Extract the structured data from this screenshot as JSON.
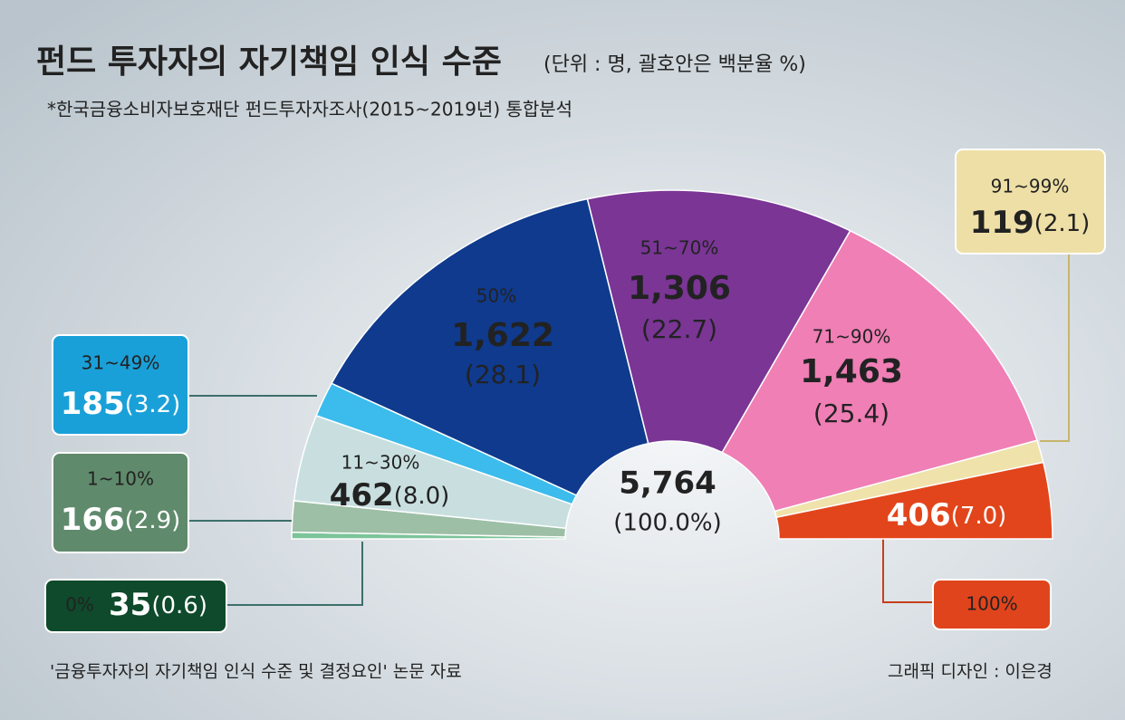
{
  "title": "펀드 투자자의 자기책임 인식 수준",
  "unit_note": "(단위 : 명, 괄호안은 백분율 %)",
  "subtitle": "*한국금융소비자보호재단 펀드투자자조사(2015~2019년) 통합분석",
  "source": "'금융투자자의 자기책임 인식 수준 및 결정요인' 논문 자료",
  "credit": "그래픽 디자인 : 이은경",
  "chart_data": {
    "type": "half-donut",
    "categories": [
      "0%",
      "1~10%",
      "11~30%",
      "31~49%",
      "50%",
      "51~70%",
      "71~90%",
      "91~99%",
      "100%"
    ],
    "values": [
      35,
      166,
      462,
      185,
      1622,
      1306,
      1463,
      119,
      406
    ],
    "value_labels": [
      "35",
      "166",
      "462",
      "185",
      "1,622",
      "1,306",
      "1,463",
      "119",
      "406"
    ],
    "share_labels": [
      "(0.6)",
      "(2.9)",
      "(8.0)",
      "(3.2)",
      "(28.1)",
      "(22.7)",
      "(25.4)",
      "(2.1)",
      "(7.0)"
    ],
    "colors": [
      "#7cc49a",
      "#9dbfa6",
      "#c9dfdf",
      "#3bbcec",
      "#0f3a8d",
      "#7a3595",
      "#ef7fb5",
      "#efe2ab",
      "#e2451b"
    ],
    "total": 5764,
    "total_label": "5,764",
    "total_share_label": "(100.0%)"
  }
}
